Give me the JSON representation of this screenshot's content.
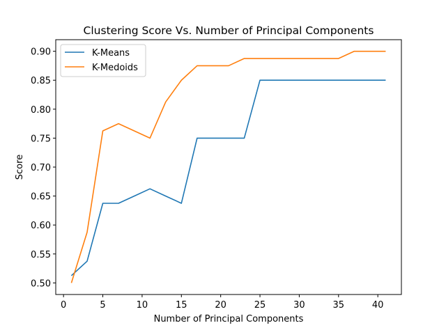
{
  "chart_data": {
    "type": "line",
    "title": "Clustering Score Vs. Number of Principal Components",
    "xlabel": "Number of Principal Components",
    "ylabel": "Score",
    "xlim": [
      -0.99,
      43.0
    ],
    "ylim": [
      0.48,
      0.92
    ],
    "xticks": [
      0,
      5,
      10,
      15,
      20,
      25,
      30,
      35,
      40
    ],
    "yticks": [
      0.5,
      0.55,
      0.6,
      0.65,
      0.7,
      0.75,
      0.8,
      0.85,
      0.9
    ],
    "ytick_labels": [
      "0.50",
      "0.55",
      "0.60",
      "0.65",
      "0.70",
      "0.75",
      "0.80",
      "0.85",
      "0.90"
    ],
    "grid": false,
    "legend_position": "top-left",
    "x": [
      1,
      3,
      5,
      7,
      9,
      11,
      13,
      15,
      17,
      19,
      21,
      23,
      25,
      27,
      29,
      31,
      33,
      35,
      37,
      39,
      41
    ],
    "series": [
      {
        "name": "K-Means",
        "color": "#1f77b4",
        "values": [
          0.5125,
          0.5375,
          0.6375,
          0.6375,
          0.65,
          0.6625,
          0.65,
          0.6375,
          0.75,
          0.75,
          0.75,
          0.75,
          0.85,
          0.85,
          0.85,
          0.85,
          0.85,
          0.85,
          0.85,
          0.85,
          0.85
        ]
      },
      {
        "name": "K-Medoids",
        "color": "#ff7f0e",
        "values": [
          0.5,
          0.5875,
          0.7625,
          0.775,
          0.7625,
          0.75,
          0.8125,
          0.85,
          0.875,
          0.875,
          0.875,
          0.8875,
          0.8875,
          0.8875,
          0.8875,
          0.8875,
          0.8875,
          0.8875,
          0.9,
          0.9,
          0.9
        ]
      }
    ]
  }
}
